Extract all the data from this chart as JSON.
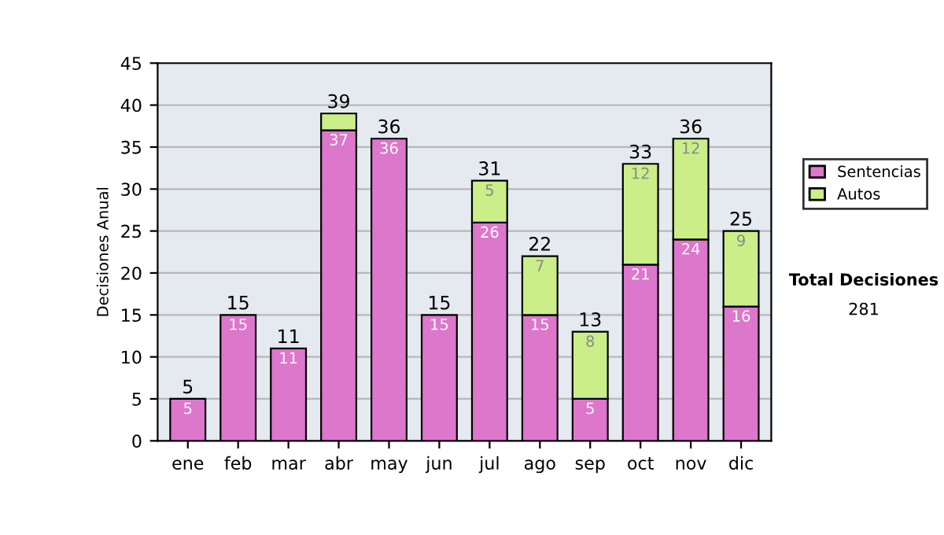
{
  "chart_data": {
    "type": "bar",
    "stacked": true,
    "ylabel": "Decisiones Anual",
    "categories": [
      "ene",
      "feb",
      "mar",
      "abr",
      "may",
      "jun",
      "jul",
      "ago",
      "sep",
      "oct",
      "nov",
      "dic"
    ],
    "series": [
      {
        "name": "Sentencias",
        "color": "#dd77cc",
        "values": [
          5,
          15,
          11,
          37,
          36,
          15,
          26,
          15,
          5,
          21,
          24,
          16
        ],
        "value_labels": [
          "5",
          "15",
          "11",
          "37",
          "36",
          "15",
          "26",
          "15",
          "5",
          "21",
          "24",
          "16"
        ]
      },
      {
        "name": "Autos",
        "color": "#ccee88",
        "values": [
          null,
          null,
          null,
          2,
          null,
          null,
          5,
          7,
          8,
          12,
          12,
          9
        ],
        "value_labels": [
          null,
          null,
          null,
          null,
          null,
          null,
          "5",
          "7",
          "8",
          "12",
          "12",
          "9"
        ]
      }
    ],
    "totals": [
      "5",
      "15",
      "11",
      "39",
      "36",
      "15",
      "31",
      "22",
      "13",
      "33",
      "36",
      "25"
    ],
    "ylim": [
      0,
      45
    ],
    "yticks": [
      0,
      5,
      10,
      15,
      20,
      25,
      30,
      35,
      40,
      45
    ],
    "grid": "y",
    "legend": "right",
    "annotations": [
      "Total Decisiones",
      "281"
    ]
  }
}
